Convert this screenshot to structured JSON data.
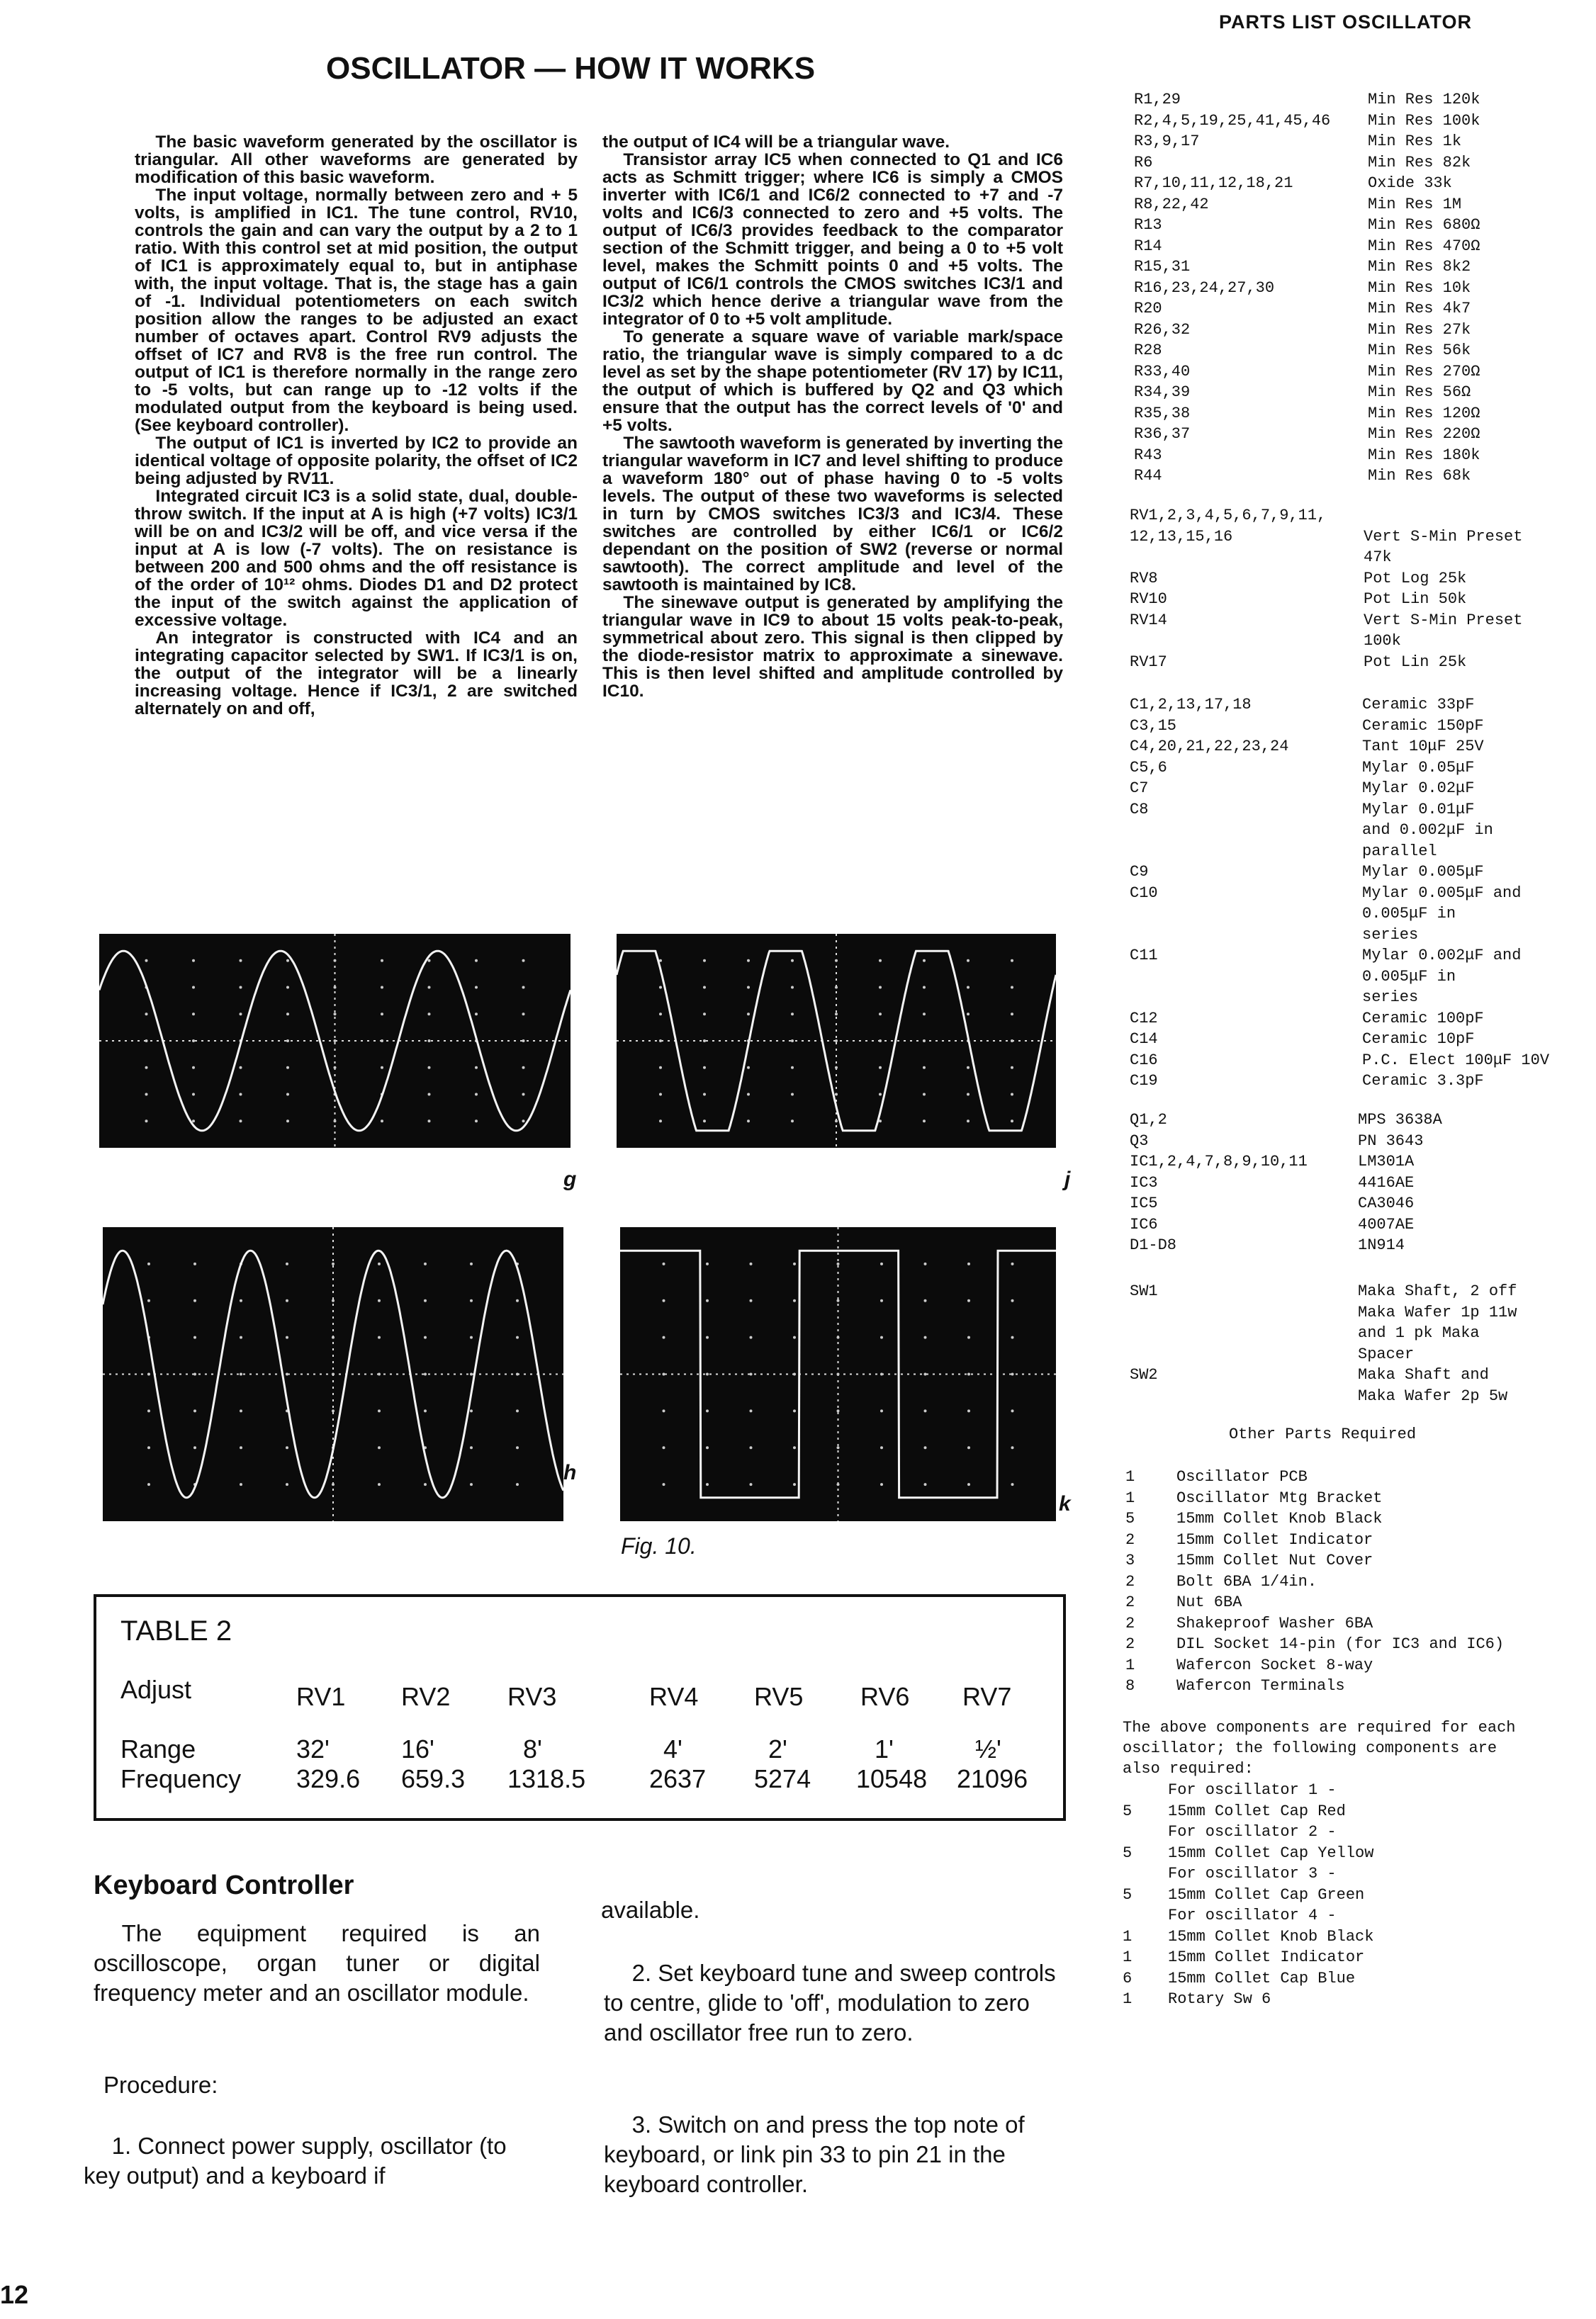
{
  "parts_heading": "PARTS LIST OSCILLATOR",
  "title": "OSCILLATOR — HOW IT WORKS",
  "how_it_works": {
    "col1": [
      "The basic waveform generated by the oscillator is triangular. All other waveforms are generated by modification of this basic waveform.",
      "The input voltage, normally between zero and + 5 volts, is amplified in IC1. The tune control, RV10, controls the gain and can vary the output by a 2 to 1 ratio. With this control set at mid position, the output of IC1 is approximately equal to, but in antiphase with, the input voltage. That is, the stage has a gain of -1. Individual potentiometers on each switch position allow the ranges to be adjusted an exact number of octaves apart. Control RV9 adjusts the offset of IC7 and RV8 is the free run control. The output of IC1 is therefore normally in the range zero to -5 volts, but can range up to -12 volts if the modulated output from the keyboard is being used. (See keyboard controller).",
      "The output of IC1 is inverted by IC2 to provide an identical voltage of opposite polarity, the offset of IC2 being adjusted by RV11.",
      "Integrated circuit IC3 is a solid state, dual, double-throw switch. If the input at A is high (+7 volts) IC3/1 will be on and IC3/2 will be off, and vice versa if the input at A is low (-7 volts). The on resistance is between 200 and 500 ohms and the off resistance is of the order of 10¹² ohms. Diodes D1 and D2 protect the input of the switch against the application of excessive voltage.",
      "An integrator is constructed with IC4 and an integrating capacitor selected by SW1. If IC3/1 is on, the output of the integrator will be a linearly increasing voltage. Hence if IC3/1, 2 are switched alternately on and off,"
    ],
    "col2": [
      "the output of IC4 will be a triangular wave.",
      "Transistor array IC5 when connected to Q1 and IC6 acts as Schmitt trigger; where IC6 is simply a CMOS inverter with IC6/1 and IC6/2 connected to +7 and -7 volts and IC6/3 connected to zero and +5 volts. The output of IC6/3 provides feedback to the comparator section of the Schmitt trigger, and being a 0 to +5 volt level, makes the Schmitt points 0 and +5 volts. The output of IC6/1 controls the CMOS switches IC3/1 and IC3/2 which hence derive a triangular wave from the integrator of 0 to +5 volt amplitude.",
      "To generate a square wave of variable mark/space ratio, the triangular wave is simply compared to a dc level as set by the shape potentiometer (RV 17) by IC11, the output of which is buffered by Q2 and Q3 which ensure that the output has the correct levels of '0' and +5 volts.",
      "The sawtooth waveform is generated by inverting the triangular waveform in IC7 and level shifting to produce a waveform 180° out of phase having 0 to -5 volts levels. The output of these two waveforms is selected in turn by CMOS switches IC3/3 and IC3/4. These switches are controlled by either IC6/1 or IC6/2 dependant on the position of SW2 (reverse or normal sawtooth). The correct amplitude and level of the sawtooth is maintained by IC8.",
      "The sinewave output is generated by amplifying the triangular wave in IC9 to about 15 volts peak-to-peak, symmetrical about zero. This signal is then clipped by the diode-resistor matrix to approximate a sinewave. This is then level shifted and amplitude controlled by IC10."
    ]
  },
  "figure": {
    "caption": "Fig. 10.",
    "scopes": [
      {
        "label": "g",
        "waveform": "sine"
      },
      {
        "label": "j",
        "waveform": "clipped-sine"
      },
      {
        "label": "h",
        "waveform": "sine"
      },
      {
        "label": "k",
        "waveform": "square"
      }
    ]
  },
  "table2": {
    "title": "TABLE 2",
    "adjust_label": "Adjust",
    "range_label": "Range",
    "frequency_label": "Frequency",
    "columns": [
      {
        "rv": "RV1",
        "range": "32'",
        "freq": "329.6"
      },
      {
        "rv": "RV2",
        "range": "16'",
        "freq": "659.3"
      },
      {
        "rv": "RV3",
        "range": "8'",
        "freq": "1318.5"
      },
      {
        "rv": "RV4",
        "range": "4'",
        "freq": "2637"
      },
      {
        "rv": "RV5",
        "range": "2'",
        "freq": "5274"
      },
      {
        "rv": "RV6",
        "range": "1'",
        "freq": "10548"
      },
      {
        "rv": "RV7",
        "range": "½'",
        "freq": "21096"
      }
    ]
  },
  "keyboard": {
    "heading": "Keyboard Controller",
    "intro": "The equipment required is an oscilloscope, organ tuner or digital frequency meter and an oscillator module.",
    "procedure_label": "Procedure:",
    "step1": "1. Connect power supply, oscillator (to key output) and a keyboard if",
    "step1_cont": "available.",
    "step2": "2. Set keyboard tune and sweep controls to centre, glide to 'off', modulation to zero and oscillator free run to zero.",
    "step3": "3. Switch on and press the top note of keyboard, or link pin 33 to pin 21 in the keyboard controller."
  },
  "parts": {
    "resistors": [
      {
        "d": "R1,29",
        "v": "Min Res 120k"
      },
      {
        "d": "R2,4,5,19,25,41,45,46",
        "v": "Min Res 100k"
      },
      {
        "d": "R3,9,17",
        "v": "Min Res 1k"
      },
      {
        "d": "R6",
        "v": "Min Res 82k"
      },
      {
        "d": "R7,10,11,12,18,21",
        "v": "Oxide 33k"
      },
      {
        "d": "R8,22,42",
        "v": "Min Res 1M"
      },
      {
        "d": "R13",
        "v": "Min Res 680Ω"
      },
      {
        "d": "R14",
        "v": "Min Res 470Ω"
      },
      {
        "d": "R15,31",
        "v": "Min Res 8k2"
      },
      {
        "d": "R16,23,24,27,30",
        "v": "Min Res 10k"
      },
      {
        "d": "R20",
        "v": "Min Res 4k7"
      },
      {
        "d": "R26,32",
        "v": "Min Res 27k"
      },
      {
        "d": "R28",
        "v": "Min Res 56k"
      },
      {
        "d": "R33,40",
        "v": "Min Res 270Ω"
      },
      {
        "d": "R34,39",
        "v": "Min Res 56Ω"
      },
      {
        "d": "R35,38",
        "v": "Min Res 120Ω"
      },
      {
        "d": "R36,37",
        "v": "Min Res 220Ω"
      },
      {
        "d": "R43",
        "v": "Min Res 180k"
      },
      {
        "d": "R44",
        "v": "Min Res 68k"
      }
    ],
    "pots": [
      {
        "d": "RV1,2,3,4,5,6,7,9,11,",
        "v": ""
      },
      {
        "d": "  12,13,15,16",
        "v": "Vert S-Min Preset"
      },
      {
        "d": "",
        "v": "   47k"
      },
      {
        "d": "RV8",
        "v": "Pot Log 25k"
      },
      {
        "d": "RV10",
        "v": "Pot Lin 50k"
      },
      {
        "d": "RV14",
        "v": "Vert S-Min Preset"
      },
      {
        "d": "",
        "v": "   100k"
      },
      {
        "d": "RV17",
        "v": "Pot Lin 25k"
      }
    ],
    "capacitors": [
      {
        "d": "C1,2,13,17,18",
        "v": "Ceramic 33pF"
      },
      {
        "d": "C3,15",
        "v": "Ceramic 150pF"
      },
      {
        "d": "C4,20,21,22,23,24",
        "v": "Tant 10μF 25V"
      },
      {
        "d": "C5,6",
        "v": "Mylar 0.05μF"
      },
      {
        "d": "C7",
        "v": "Mylar 0.02μF"
      },
      {
        "d": "C8",
        "v": "Mylar 0.01μF"
      },
      {
        "d": "",
        "v": "  and 0.002μF in"
      },
      {
        "d": "",
        "v": "  parallel"
      },
      {
        "d": "C9",
        "v": "Mylar 0.005μF"
      },
      {
        "d": "C10",
        "v": "Mylar 0.005μF and"
      },
      {
        "d": "",
        "v": "  0.005μF in"
      },
      {
        "d": "",
        "v": "  series"
      },
      {
        "d": "C11",
        "v": "Mylar 0.002μF and"
      },
      {
        "d": "",
        "v": "  0.005μF in"
      },
      {
        "d": "",
        "v": "  series"
      },
      {
        "d": "C12",
        "v": "Ceramic 100pF"
      },
      {
        "d": "C14",
        "v": "Ceramic 10pF"
      },
      {
        "d": "C16",
        "v": "P.C. Elect 100μF 10V"
      },
      {
        "d": "C19",
        "v": "Ceramic 3.3pF"
      }
    ],
    "semis": [
      {
        "d": "Q1,2",
        "v": "MPS 3638A"
      },
      {
        "d": "Q3",
        "v": "PN 3643"
      },
      {
        "d": "IC1,2,4,7,8,9,10,11",
        "v": "LM301A"
      },
      {
        "d": "IC3",
        "v": "4416AE"
      },
      {
        "d": "IC5",
        "v": "CA3046"
      },
      {
        "d": "IC6",
        "v": "4007AE"
      },
      {
        "d": "D1-D8",
        "v": "1N914"
      }
    ],
    "switches": [
      {
        "d": "SW1",
        "v": "Maka Shaft, 2 off"
      },
      {
        "d": "",
        "v": "  Maka Wafer 1p 11w"
      },
      {
        "d": "",
        "v": "  and 1 pk Maka"
      },
      {
        "d": "",
        "v": "  Spacer"
      },
      {
        "d": "SW2",
        "v": "Maka Shaft and"
      },
      {
        "d": "",
        "v": "  Maka Wafer 2p 5w"
      }
    ],
    "other_heading": "Other Parts Required",
    "other": [
      {
        "q": "1",
        "t": "Oscillator PCB"
      },
      {
        "q": "1",
        "t": "Oscillator Mtg Bracket"
      },
      {
        "q": "5",
        "t": "15mm Collet Knob Black"
      },
      {
        "q": "2",
        "t": "15mm Collet Indicator"
      },
      {
        "q": "3",
        "t": "15mm Collet Nut Cover"
      },
      {
        "q": "2",
        "t": "Bolt 6BA 1/4in."
      },
      {
        "q": "2",
        "t": "Nut 6BA"
      },
      {
        "q": "2",
        "t": "Shakeproof Washer 6BA"
      },
      {
        "q": "2",
        "t": "DIL Socket 14-pin (for IC3 and IC6)"
      },
      {
        "q": "1",
        "t": "Wafercon Socket 8-way"
      },
      {
        "q": "8",
        "t": "Wafercon Terminals"
      }
    ],
    "note": "The above components are required for each oscillator; the following components are also required:",
    "per_osc": [
      {
        "q": "",
        "t": "For oscillator 1 -"
      },
      {
        "q": "5",
        "t": "15mm Collet Cap Red"
      },
      {
        "q": "",
        "t": "For oscillator 2 -"
      },
      {
        "q": "5",
        "t": "15mm Collet Cap Yellow"
      },
      {
        "q": "",
        "t": "For oscillator 3 -"
      },
      {
        "q": "5",
        "t": "15mm Collet Cap Green"
      },
      {
        "q": "",
        "t": "For oscillator 4 -"
      },
      {
        "q": "1",
        "t": "15mm Collet Knob Black"
      },
      {
        "q": "1",
        "t": "15mm Collet Indicator"
      },
      {
        "q": "6",
        "t": "15mm Collet Cap Blue"
      },
      {
        "q": "1",
        "t": "Rotary Sw 6"
      }
    ]
  },
  "page_number": "12"
}
